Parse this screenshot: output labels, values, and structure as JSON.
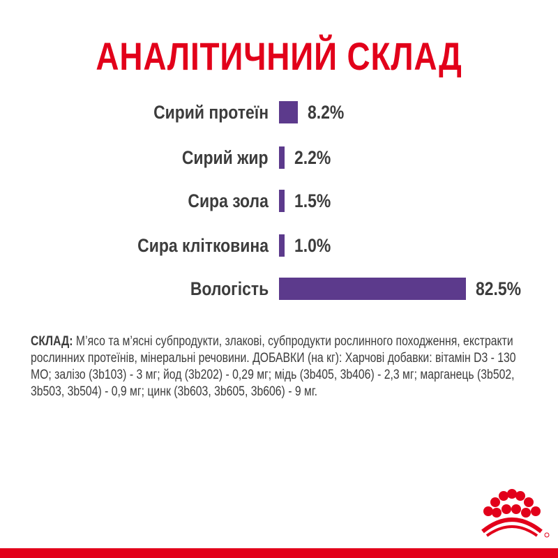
{
  "title": "АНАЛІТИЧНИЙ СКЛАД",
  "chart_data": {
    "type": "bar",
    "orientation": "horizontal",
    "categories": [
      "Сирий протеїн",
      "Сирий жир",
      "Сира зола",
      "Сира клітковина",
      "Вологість"
    ],
    "values": [
      8.2,
      2.2,
      1.5,
      1.0,
      82.5
    ],
    "labels": [
      "8.2%",
      "2.2%",
      "1.5%",
      "1.0%",
      "82.5%"
    ],
    "bar_color": "#5c3a8c",
    "grid": false
  },
  "composition": {
    "label": "СКЛАД:",
    "text": " М’ясо та м’ясні субпродукти, злакові, субпродукти рослинного походження, екстракти рослинних протеїнів, мінеральні речовини. ДОБАВКИ (на кг): Харчові добавки: вітамін D3 - 130 МО; залізо (3b103) - 3 мг; йод (3b202) - 0,29 мг; мідь (3b405, 3b406) - 2,3 мг; марганець (3b502, 3b503, 3b504) - 0,9 мг; цинк (3b603, 3b605, 3b606) - 9 мг."
  },
  "brand_color": "#e2001a",
  "logo": "Royal Canin crown"
}
